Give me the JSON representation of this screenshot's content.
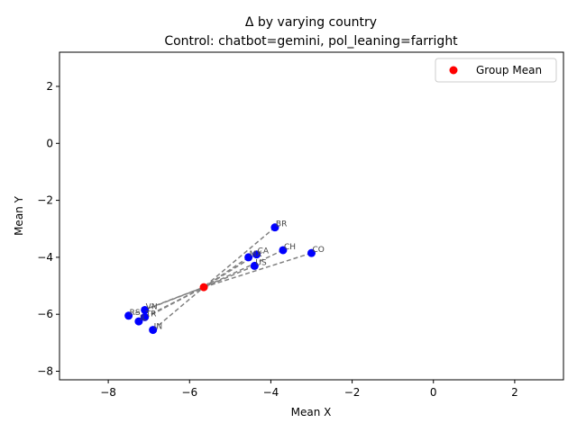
{
  "chart_data": {
    "type": "scatter",
    "title": "Δ by varying country",
    "subtitle": "Control: chatbot=gemini, pol_leaning=farright",
    "xlabel": "Mean X",
    "ylabel": "Mean Y",
    "xlim": [
      -9.2,
      3.2
    ],
    "ylim": [
      -8.3,
      3.2
    ],
    "xticks": [
      -8,
      -6,
      -4,
      -2,
      0,
      2
    ],
    "yticks": [
      -8,
      -6,
      -4,
      -2,
      0,
      2
    ],
    "grid": false,
    "legend": {
      "position": "top-right",
      "entries": [
        "Group Mean"
      ]
    },
    "colors": {
      "points": "#0000ff",
      "mean": "#ff0000",
      "lines": "#808080"
    },
    "group_mean": {
      "name": "Group Mean",
      "x": -5.65,
      "y": -5.05
    },
    "points": [
      {
        "label": "BR",
        "x": -3.9,
        "y": -2.95
      },
      {
        "label": "CH",
        "x": -3.7,
        "y": -3.75
      },
      {
        "label": "CO",
        "x": -3.0,
        "y": -3.85
      },
      {
        "label": "CA",
        "x": -4.35,
        "y": -3.9
      },
      {
        "label": "MX",
        "x": -4.55,
        "y": -4.0
      },
      {
        "label": "US",
        "x": -4.4,
        "y": -4.3
      },
      {
        "label": "VN",
        "x": -7.1,
        "y": -5.85
      },
      {
        "label": "RS",
        "x": -7.5,
        "y": -6.05
      },
      {
        "label": "TR",
        "x": -7.1,
        "y": -6.1
      },
      {
        "label": "IL",
        "x": -7.25,
        "y": -6.25
      },
      {
        "label": "IN",
        "x": -6.9,
        "y": -6.55
      }
    ]
  }
}
